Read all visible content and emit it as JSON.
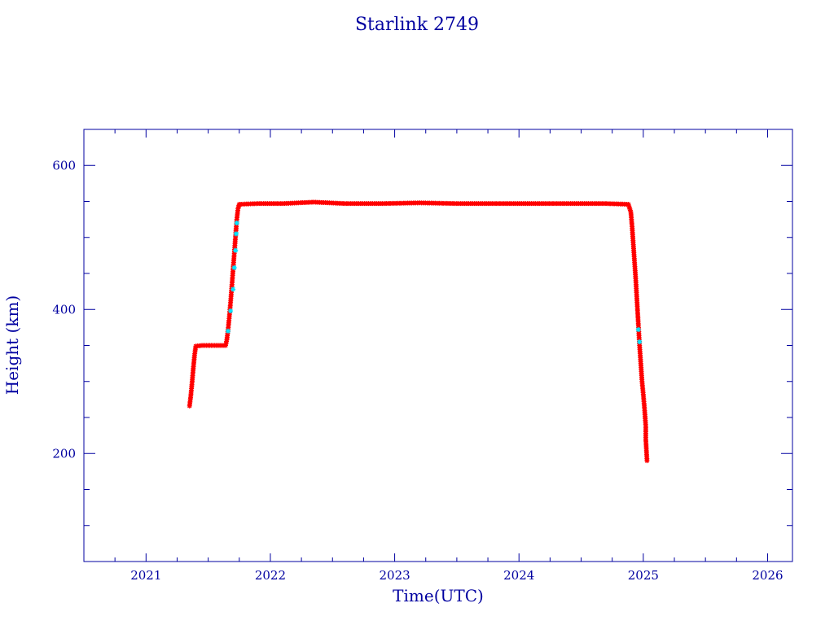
{
  "chart_data": {
    "type": "scatter",
    "title": "Starlink 2749",
    "xlabel": "Time(UTC)",
    "ylabel": "Height (km)",
    "xlim": [
      2020.5,
      2026.2
    ],
    "ylim": [
      50,
      650
    ],
    "x_ticks": [
      "2021",
      "2022",
      "2023",
      "2024",
      "2025",
      "2026"
    ],
    "y_ticks": [
      "200",
      "400",
      "600"
    ],
    "grid": false,
    "colors": {
      "text": "#0000a0",
      "frame": "#0000a0",
      "line": "#000080",
      "marker_primary": "#ff0000",
      "marker_secondary": "#00e5ff"
    },
    "series": [
      {
        "values": [
          [
            2021.35,
            266
          ],
          [
            2021.36,
            280
          ],
          [
            2021.37,
            298
          ],
          [
            2021.38,
            318
          ],
          [
            2021.39,
            336
          ],
          [
            2021.4,
            349
          ],
          [
            2021.45,
            350
          ],
          [
            2021.5,
            350
          ],
          [
            2021.55,
            350
          ],
          [
            2021.6,
            350
          ],
          [
            2021.64,
            350
          ],
          [
            2021.65,
            358
          ],
          [
            2021.66,
            372
          ],
          [
            2021.67,
            390
          ],
          [
            2021.68,
            410
          ],
          [
            2021.69,
            432
          ],
          [
            2021.7,
            455
          ],
          [
            2021.71,
            478
          ],
          [
            2021.72,
            502
          ],
          [
            2021.73,
            525
          ],
          [
            2021.74,
            540
          ],
          [
            2021.75,
            546
          ],
          [
            2021.9,
            547
          ],
          [
            2022.1,
            547
          ],
          [
            2022.35,
            549
          ],
          [
            2022.6,
            547
          ],
          [
            2022.9,
            547
          ],
          [
            2023.2,
            548
          ],
          [
            2023.5,
            547
          ],
          [
            2023.8,
            547
          ],
          [
            2024.1,
            547
          ],
          [
            2024.4,
            547
          ],
          [
            2024.7,
            547
          ],
          [
            2024.88,
            546
          ],
          [
            2024.9,
            535
          ],
          [
            2024.91,
            515
          ],
          [
            2024.92,
            490
          ],
          [
            2024.93,
            465
          ],
          [
            2024.94,
            440
          ],
          [
            2024.95,
            410
          ],
          [
            2024.96,
            380
          ],
          [
            2024.97,
            350
          ],
          [
            2024.98,
            325
          ],
          [
            2024.99,
            300
          ],
          [
            2025.0,
            282
          ],
          [
            2025.01,
            262
          ],
          [
            2025.02,
            238
          ],
          [
            2025.02,
            220
          ],
          [
            2025.03,
            190
          ]
        ],
        "secondary_values": [
          [
            2021.66,
            370
          ],
          [
            2021.68,
            398
          ],
          [
            2021.7,
            428
          ],
          [
            2021.71,
            458
          ],
          [
            2021.72,
            482
          ],
          [
            2021.725,
            505
          ],
          [
            2021.73,
            520
          ],
          [
            2024.96,
            372
          ],
          [
            2024.97,
            355
          ]
        ]
      }
    ]
  }
}
